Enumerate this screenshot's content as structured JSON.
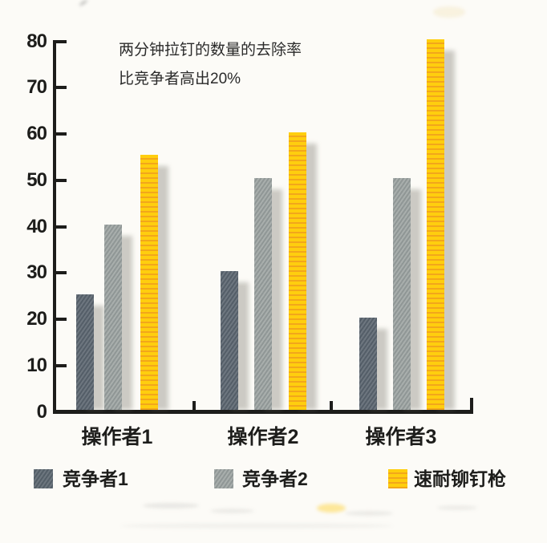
{
  "chart_data": {
    "type": "bar",
    "title": "",
    "xlabel": "",
    "ylabel": "",
    "categories": [
      "操作者1",
      "操作者2",
      "操作者3"
    ],
    "series": [
      {
        "name": "竞争者1",
        "values": [
          25,
          30,
          20
        ],
        "color": "#5c6770"
      },
      {
        "name": "竞争者2",
        "values": [
          40,
          50,
          50
        ],
        "color": "#9ea5a3"
      },
      {
        "name": "速耐铆钉枪",
        "values": [
          55,
          60,
          80
        ],
        "color": "#ffce0e",
        "stripe_color": "#f2a71b",
        "pattern": "horizontal-stripes"
      }
    ],
    "ylim": [
      0,
      80
    ],
    "yticks": [
      0,
      10,
      20,
      30,
      40,
      50,
      60,
      70,
      80
    ],
    "grid": false,
    "legend_position": "bottom",
    "annotation": {
      "line1": "两分钟拉钉的数量的去除率",
      "line2": "比竞争者高出20%"
    },
    "axis_color": "#1d1d1b",
    "text_color": "#1d1d1b"
  }
}
